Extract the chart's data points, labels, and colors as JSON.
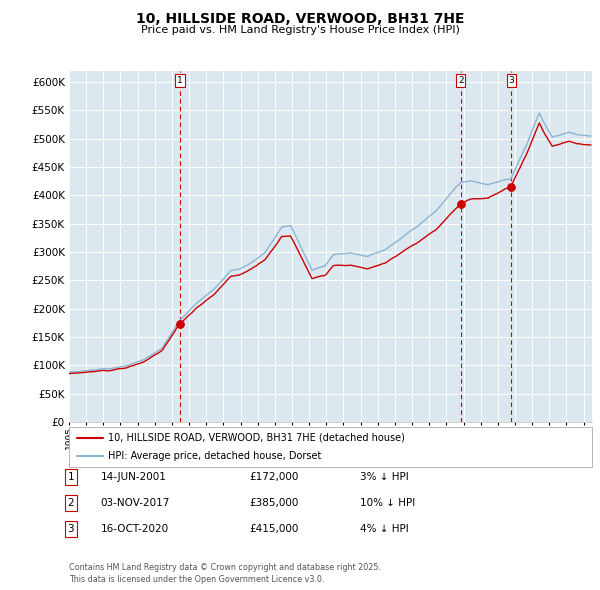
{
  "title": "10, HILLSIDE ROAD, VERWOOD, BH31 7HE",
  "subtitle": "Price paid vs. HM Land Registry's House Price Index (HPI)",
  "legend_line1": "10, HILLSIDE ROAD, VERWOOD, BH31 7HE (detached house)",
  "legend_line2": "HPI: Average price, detached house, Dorset",
  "transactions": [
    {
      "num": "1",
      "date": "14-JUN-2001",
      "price": "£172,000",
      "pct": "3% ↓ HPI",
      "sale_year": 2001.458
    },
    {
      "num": "2",
      "date": "03-NOV-2017",
      "price": "£385,000",
      "pct": "10% ↓ HPI",
      "sale_year": 2017.833
    },
    {
      "num": "3",
      "date": "16-OCT-2020",
      "price": "£415,000",
      "pct": "4% ↓ HPI",
      "sale_year": 2020.792
    }
  ],
  "sale_prices": [
    172000,
    385000,
    415000
  ],
  "footnote1": "Contains HM Land Registry data © Crown copyright and database right 2025.",
  "footnote2": "This data is licensed under the Open Government Licence v3.0.",
  "hpi_color": "#8ab4d4",
  "price_color": "#cc0000",
  "bg_color": "#dce8f0",
  "grid_color": "#ffffff",
  "ylim": [
    0,
    620000
  ],
  "xlim": [
    1995,
    2025.5
  ],
  "ytick_vals": [
    0,
    50000,
    100000,
    150000,
    200000,
    250000,
    300000,
    350000,
    400000,
    450000,
    500000,
    550000,
    600000
  ],
  "ytick_labels": [
    "£0",
    "£50K",
    "£100K",
    "£150K",
    "£200K",
    "£250K",
    "£300K",
    "£350K",
    "£400K",
    "£450K",
    "£500K",
    "£550K",
    "£600K"
  ]
}
